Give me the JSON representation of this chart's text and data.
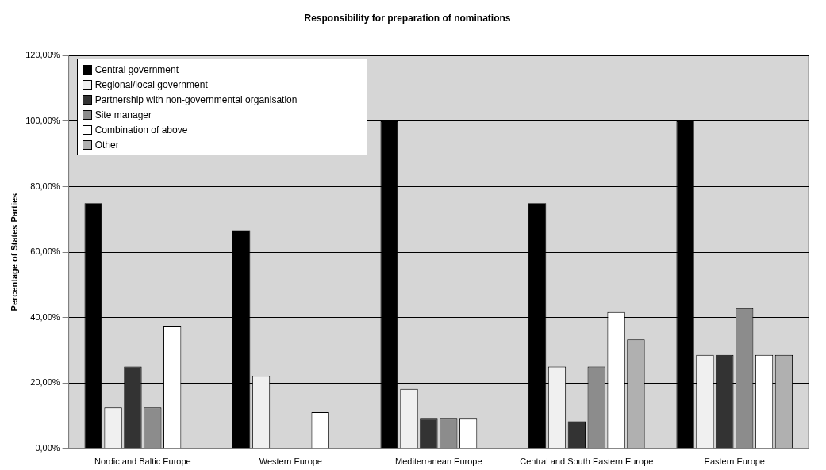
{
  "chart_data": {
    "type": "bar",
    "title": "Responsibility for preparation of nominations",
    "ylabel": "Percentage of States Parties",
    "categories": [
      "Nordic and Baltic Europe",
      "Western Europe",
      "Mediterranean Europe",
      "Central and South Eastern Europe",
      "Eastern Europe"
    ],
    "series": [
      {
        "name": "Central government",
        "color": "#000000",
        "values": [
          75,
          66.7,
          100,
          75,
          100
        ]
      },
      {
        "name": "Regional/local government",
        "color": "#f0f0f0",
        "values": [
          12.5,
          22.2,
          18.2,
          25,
          28.6
        ]
      },
      {
        "name": "Partnership with non-governmental organisation",
        "color": "#333333",
        "values": [
          25,
          0,
          9.1,
          8.3,
          28.6
        ]
      },
      {
        "name": "Site manager",
        "color": "#8c8c8c",
        "values": [
          12.5,
          0,
          9.1,
          25,
          42.9
        ]
      },
      {
        "name": "Combination of above",
        "color": "#ffffff",
        "values": [
          37.5,
          11.1,
          9.1,
          41.7,
          28.6
        ]
      },
      {
        "name": "Other",
        "color": "#b0b0b0",
        "values": [
          0,
          0,
          0,
          33.3,
          28.6
        ]
      }
    ],
    "ylim": [
      0,
      120
    ],
    "yticks": [
      {
        "value": 0,
        "label": "0,00%"
      },
      {
        "value": 20,
        "label": "20,00%"
      },
      {
        "value": 40,
        "label": "40,00%"
      },
      {
        "value": 60,
        "label": "60,00%"
      },
      {
        "value": 80,
        "label": "80,00%"
      },
      {
        "value": 100,
        "label": "100,00%"
      },
      {
        "value": 120,
        "label": "120,00%"
      }
    ],
    "grid": "y",
    "legend": "top left"
  }
}
